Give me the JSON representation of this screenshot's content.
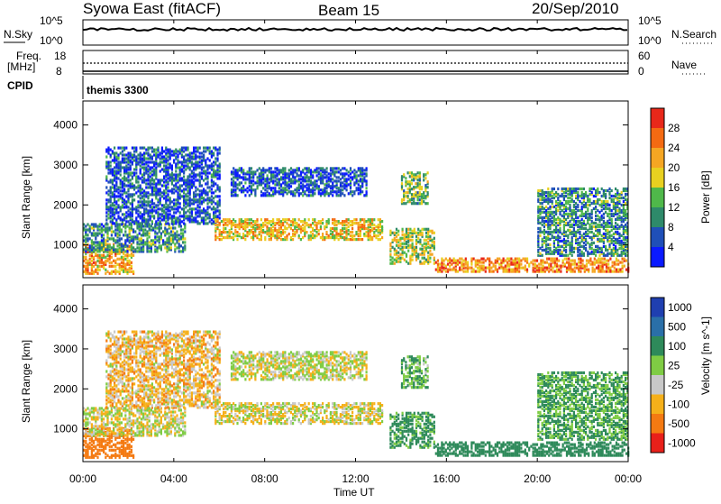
{
  "header": {
    "station": "Syowa East (fitACF)",
    "beam": "Beam 15",
    "date": "20/Sep/2010"
  },
  "top_panels": {
    "nsky_label": "N.Sky",
    "nsearch_label": "N.Search",
    "n_ticks_top": "10^5",
    "n_ticks_bottom": "10^0",
    "freq_label_1": "Freq.",
    "freq_label_2": "[MHz]",
    "freq_ticks": [
      "18",
      "8"
    ],
    "nave_label": "Nave",
    "nave_ticks": [
      "60",
      "0"
    ],
    "cpid_label": "CPID",
    "cpid_value": "themis 3300"
  },
  "x_axis": {
    "label": "Time UT",
    "ticks": [
      "00:00",
      "04:00",
      "08:00",
      "12:00",
      "16:00",
      "20:00",
      "00:00"
    ]
  },
  "y_axis": {
    "label": "Slant Range [km]",
    "ticks": [
      "1000",
      "2000",
      "3000",
      "4000"
    ]
  },
  "power_scale": {
    "label": "Power [dB]",
    "ticks": [
      "4",
      "8",
      "12",
      "16",
      "20",
      "24",
      "28"
    ],
    "colors": [
      "#0a1aff",
      "#1f4fb8",
      "#2e8a6a",
      "#4fb84a",
      "#e8d020",
      "#f5a623",
      "#f46a12",
      "#e8281a"
    ]
  },
  "velocity_scale": {
    "label": "Velocity [m s^-1]",
    "ticks": [
      "1000",
      "500",
      "100",
      "25",
      "-25",
      "-100",
      "-500",
      "-1000"
    ],
    "colors": [
      "#1f3fb0",
      "#2a6fa8",
      "#2e8a5a",
      "#7fcc44",
      "#c8c8c8",
      "#f5b01a",
      "#f47a12",
      "#e8201a"
    ]
  },
  "chart_data": {
    "type": "heatmap",
    "xlabel": "Time UT",
    "ylabel": "Slant Range [km]",
    "xlim_hours": [
      0,
      24
    ],
    "ylim_km": [
      180,
      4600
    ],
    "panels": [
      "power",
      "velocity"
    ],
    "echo_regions": [
      {
        "t_start": 0.0,
        "t_end": 2.2,
        "r_start": 250,
        "r_end": 1000,
        "power_db": 22,
        "velocity": -200
      },
      {
        "t_start": 0.0,
        "t_end": 4.5,
        "r_start": 800,
        "r_end": 1500,
        "power_db": 10,
        "velocity": 0
      },
      {
        "t_start": 1.0,
        "t_end": 6.0,
        "r_start": 1500,
        "r_end": 3400,
        "power_db": 6,
        "velocity": -50
      },
      {
        "t_start": 5.8,
        "t_end": 13.2,
        "r_start": 1100,
        "r_end": 1600,
        "power_db": 20,
        "velocity": -10
      },
      {
        "t_start": 6.5,
        "t_end": 12.5,
        "r_start": 2200,
        "r_end": 2900,
        "power_db": 6,
        "velocity": 10
      },
      {
        "t_start": 13.5,
        "t_end": 15.5,
        "r_start": 500,
        "r_end": 1400,
        "power_db": 16,
        "velocity": 150
      },
      {
        "t_start": 14.0,
        "t_end": 15.2,
        "r_start": 2000,
        "r_end": 2800,
        "power_db": 14,
        "velocity": 100
      },
      {
        "t_start": 15.5,
        "t_end": 24.0,
        "r_start": 300,
        "r_end": 650,
        "power_db": 24,
        "velocity": 250
      },
      {
        "t_start": 20.0,
        "t_end": 24.0,
        "r_start": 700,
        "r_end": 2400,
        "power_db": 10,
        "velocity": 120
      }
    ]
  }
}
